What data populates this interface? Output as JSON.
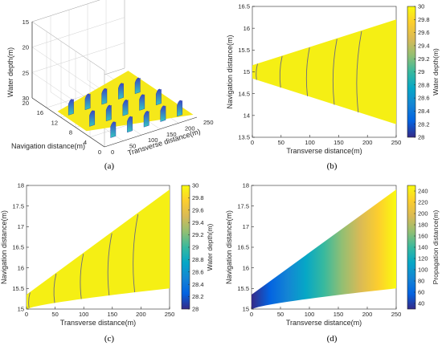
{
  "figure": {
    "captions": [
      "(a)",
      "(b)",
      "(c)",
      "(d)"
    ]
  },
  "chart_data": [
    {
      "panel": "(a)",
      "type": "surface",
      "title": "",
      "xlabel": "Transverse distance(m)",
      "ylabel": "Navigation distance(m)",
      "zlabel": "Water depth(m)",
      "x_ticks": [
        "0",
        "50",
        "100",
        "150",
        "200",
        "250"
      ],
      "y_ticks": [
        "0",
        "4",
        "8",
        "12",
        "16",
        "20"
      ],
      "z_ticks": [
        "30",
        "25",
        "20",
        "15"
      ],
      "xlim": [
        0,
        250
      ],
      "ylim": [
        0,
        20
      ],
      "zlim": [
        15,
        30
      ],
      "z_axis_reversed": true,
      "surface_depth": 30,
      "ripple_rows": 3,
      "ripple_columns": 5,
      "colormap": "parula",
      "colors": {
        "surface": "#f5e81a",
        "ripple_low": "#3a47c6",
        "ripple_high": "#35c8c0"
      }
    },
    {
      "panel": "(b)",
      "type": "heatmap",
      "xlabel": "Transverse distance(m)",
      "ylabel": "Navigation distance(m)",
      "xlim": [
        0,
        250
      ],
      "ylim": [
        13.5,
        16.5
      ],
      "x_ticks": [
        0,
        50,
        100,
        150,
        200,
        250
      ],
      "y_ticks": [
        13.5,
        14,
        14.5,
        15,
        15.5,
        16,
        16.5
      ],
      "region_bounds": {
        "x": [
          0,
          250
        ],
        "upper": [
          15.15,
          16.2
        ],
        "lower": [
          14.85,
          13.8
        ]
      },
      "field": "Water depth(m)",
      "field_value": 30,
      "contour_x": [
        8,
        50,
        97,
        144,
        186
      ],
      "colorbar": {
        "label": "Water depth(m)",
        "min": 28,
        "max": 30,
        "ticks": [
          28,
          28.2,
          28.4,
          28.6,
          28.8,
          29,
          29.2,
          29.4,
          29.6,
          29.8,
          30
        ]
      },
      "colormap": "parula"
    },
    {
      "panel": "(c)",
      "type": "heatmap",
      "xlabel": "Transverse distance(m)",
      "ylabel": "Navigation distance(m)",
      "xlim": [
        0,
        250
      ],
      "ylim": [
        15,
        18
      ],
      "x_ticks": [
        0,
        50,
        100,
        150,
        200,
        250
      ],
      "y_ticks": [
        15,
        15.5,
        16,
        16.5,
        17,
        17.5,
        18
      ],
      "region_bounds": {
        "x": [
          0,
          250
        ],
        "upper": [
          15.35,
          17.9
        ],
        "lower": [
          15.0,
          15.5
        ]
      },
      "field": "Water depth(m)",
      "field_value": 30,
      "contour_x": [
        5,
        50,
        97,
        146,
        191
      ],
      "colorbar": {
        "label": "Water depth(m)",
        "min": 28,
        "max": 30,
        "ticks": [
          28,
          28.2,
          28.4,
          28.6,
          28.8,
          29,
          29.2,
          29.4,
          29.6,
          29.8,
          30
        ]
      },
      "colormap": "parula"
    },
    {
      "panel": "(d)",
      "type": "heatmap",
      "xlabel": "Transverse distance(m)",
      "ylabel": "Navigation distance(m)",
      "xlim": [
        0,
        250
      ],
      "ylim": [
        15,
        18
      ],
      "x_ticks": [
        0,
        50,
        100,
        150,
        200,
        250
      ],
      "y_ticks": [
        15,
        15.5,
        16,
        16.5,
        17,
        17.5,
        18
      ],
      "region_bounds": {
        "x": [
          0,
          250
        ],
        "upper": [
          15.35,
          17.9
        ],
        "lower": [
          15.0,
          15.5
        ]
      },
      "field": "Propagation distance(m)",
      "field_range": [
        30,
        250
      ],
      "colorbar": {
        "label": "Propagation distance(m)",
        "min": 30,
        "max": 250,
        "ticks": [
          40,
          60,
          80,
          100,
          120,
          140,
          160,
          180,
          200,
          220,
          240
        ]
      },
      "colormap": "parula"
    }
  ]
}
